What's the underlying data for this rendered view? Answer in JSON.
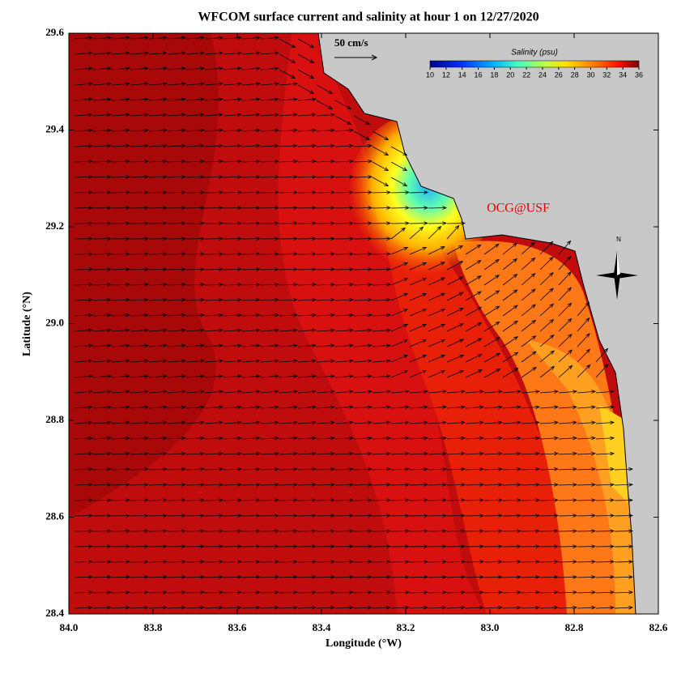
{
  "title": "WFCOM surface current and salinity at hour 1 on 12/27/2020",
  "x_axis": {
    "label": "Longitude (°W)",
    "lim": [
      84.0,
      82.6
    ],
    "ticks": [
      {
        "value": 84.0,
        "label": "84.0"
      },
      83.8,
      83.6,
      83.4,
      83.2,
      {
        "value": 83.0,
        "label": "83.0"
      },
      82.8,
      82.6
    ]
  },
  "y_axis": {
    "label": "Latitude (°N)",
    "lim": [
      28.4,
      29.6
    ],
    "ticks": [
      28.4,
      28.6,
      28.8,
      {
        "value": 29.0,
        "label": "29.0"
      },
      29.2,
      29.4,
      29.6
    ]
  },
  "scale_label": "50 cm/s",
  "colorbar": {
    "title": "Salinity (psu)",
    "lim": [
      10,
      36
    ],
    "ticks": [
      10,
      12,
      14,
      16,
      18,
      20,
      22,
      24,
      26,
      28,
      30,
      32,
      34,
      36
    ]
  },
  "watermark": "OCG@USF",
  "compass": "N"
}
